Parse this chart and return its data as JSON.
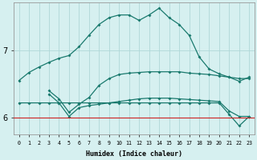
{
  "xlabel": "Humidex (Indice chaleur)",
  "bg_color": "#d6f0f0",
  "line_color": "#1a7a6e",
  "grid_color": "#afd8d8",
  "red_line_color": "#cc2222",
  "x_ticks": [
    0,
    1,
    2,
    3,
    4,
    5,
    6,
    7,
    8,
    9,
    10,
    11,
    12,
    13,
    14,
    15,
    16,
    17,
    18,
    19,
    20,
    21,
    22,
    23
  ],
  "y_ticks": [
    6,
    7
  ],
  "ylim": [
    5.75,
    7.7
  ],
  "xlim": [
    -0.5,
    23.5
  ],
  "series": [
    {
      "x": [
        0,
        1,
        2,
        3,
        4,
        5,
        6,
        7,
        8,
        9,
        10,
        11,
        12,
        13,
        14,
        15,
        16,
        17,
        18,
        19,
        20,
        21,
        22,
        23
      ],
      "y": [
        6.55,
        6.67,
        6.75,
        6.82,
        6.88,
        6.92,
        7.05,
        7.22,
        7.38,
        7.48,
        7.52,
        7.52,
        7.44,
        7.52,
        7.62,
        7.48,
        7.38,
        7.22,
        6.9,
        6.72,
        6.65,
        6.6,
        6.54,
        6.6
      ]
    },
    {
      "x": [
        3,
        4,
        5,
        6,
        7,
        8,
        9,
        10,
        11,
        12,
        13,
        14,
        15,
        16,
        17,
        18,
        19,
        20,
        21,
        22,
        23
      ],
      "y": [
        6.35,
        6.22,
        6.02,
        6.15,
        6.18,
        6.2,
        6.22,
        6.24,
        6.26,
        6.28,
        6.29,
        6.29,
        6.29,
        6.28,
        6.27,
        6.26,
        6.25,
        6.24,
        6.1,
        6.02,
        6.02
      ]
    },
    {
      "x": [
        0,
        1,
        2,
        3,
        4,
        5,
        6,
        7,
        8,
        9,
        10,
        11,
        12,
        13,
        14,
        15,
        16,
        17,
        18,
        19,
        20,
        21,
        22,
        23
      ],
      "y": [
        6.22,
        6.22,
        6.22,
        6.22,
        6.22,
        6.22,
        6.22,
        6.22,
        6.22,
        6.22,
        6.22,
        6.22,
        6.22,
        6.22,
        6.22,
        6.22,
        6.22,
        6.22,
        6.22,
        6.22,
        6.22,
        6.05,
        5.88,
        6.02
      ]
    },
    {
      "x": [
        3,
        4,
        5,
        6,
        7,
        8,
        9,
        10,
        11,
        12,
        13,
        14,
        15,
        16,
        17,
        18,
        19,
        20,
        21,
        22,
        23
      ],
      "y": [
        6.4,
        6.28,
        6.08,
        6.2,
        6.3,
        6.48,
        6.58,
        6.64,
        6.66,
        6.67,
        6.68,
        6.68,
        6.68,
        6.68,
        6.66,
        6.65,
        6.64,
        6.62,
        6.6,
        6.58,
        6.58
      ]
    }
  ]
}
